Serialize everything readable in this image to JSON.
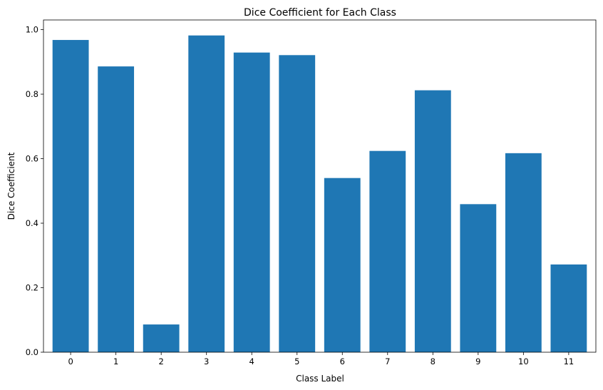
{
  "chart_data": {
    "type": "bar",
    "title": "Dice Coefficient for Each Class",
    "xlabel": "Class Label",
    "ylabel": "Dice Coefficient",
    "categories": [
      "0",
      "1",
      "2",
      "3",
      "4",
      "5",
      "6",
      "7",
      "8",
      "9",
      "10",
      "11"
    ],
    "values": [
      0.968,
      0.886,
      0.086,
      0.982,
      0.929,
      0.921,
      0.54,
      0.624,
      0.812,
      0.459,
      0.617,
      0.272
    ],
    "ylim": [
      0,
      1.03
    ],
    "yticks": [
      "0.0",
      "0.2",
      "0.4",
      "0.6",
      "0.8",
      "1.0"
    ],
    "grid": false,
    "bar_color": "#1f77b4"
  }
}
